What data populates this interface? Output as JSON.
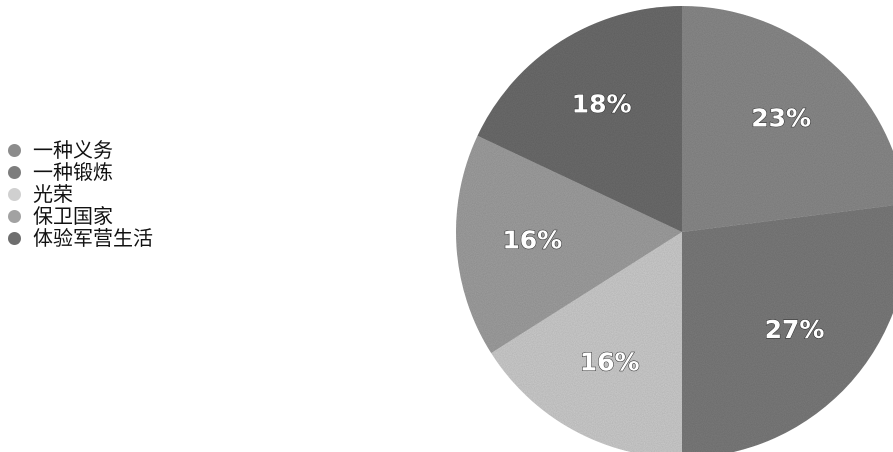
{
  "chart_data": {
    "type": "pie",
    "categories": [
      "一种义务",
      "一种锻炼",
      "光荣",
      "保卫国家",
      "体验军营生活"
    ],
    "values": [
      23,
      27,
      16,
      16,
      18
    ],
    "data_labels": [
      "23%",
      "27%",
      "16%",
      "16%",
      "18%"
    ],
    "colors": [
      "#8c8c8c",
      "#7d7d7d",
      "#d0d0d0",
      "#a2a2a2",
      "#6e6e6e"
    ],
    "legend_position": "left",
    "start_angle": "12 o'clock",
    "direction": "clockwise"
  }
}
